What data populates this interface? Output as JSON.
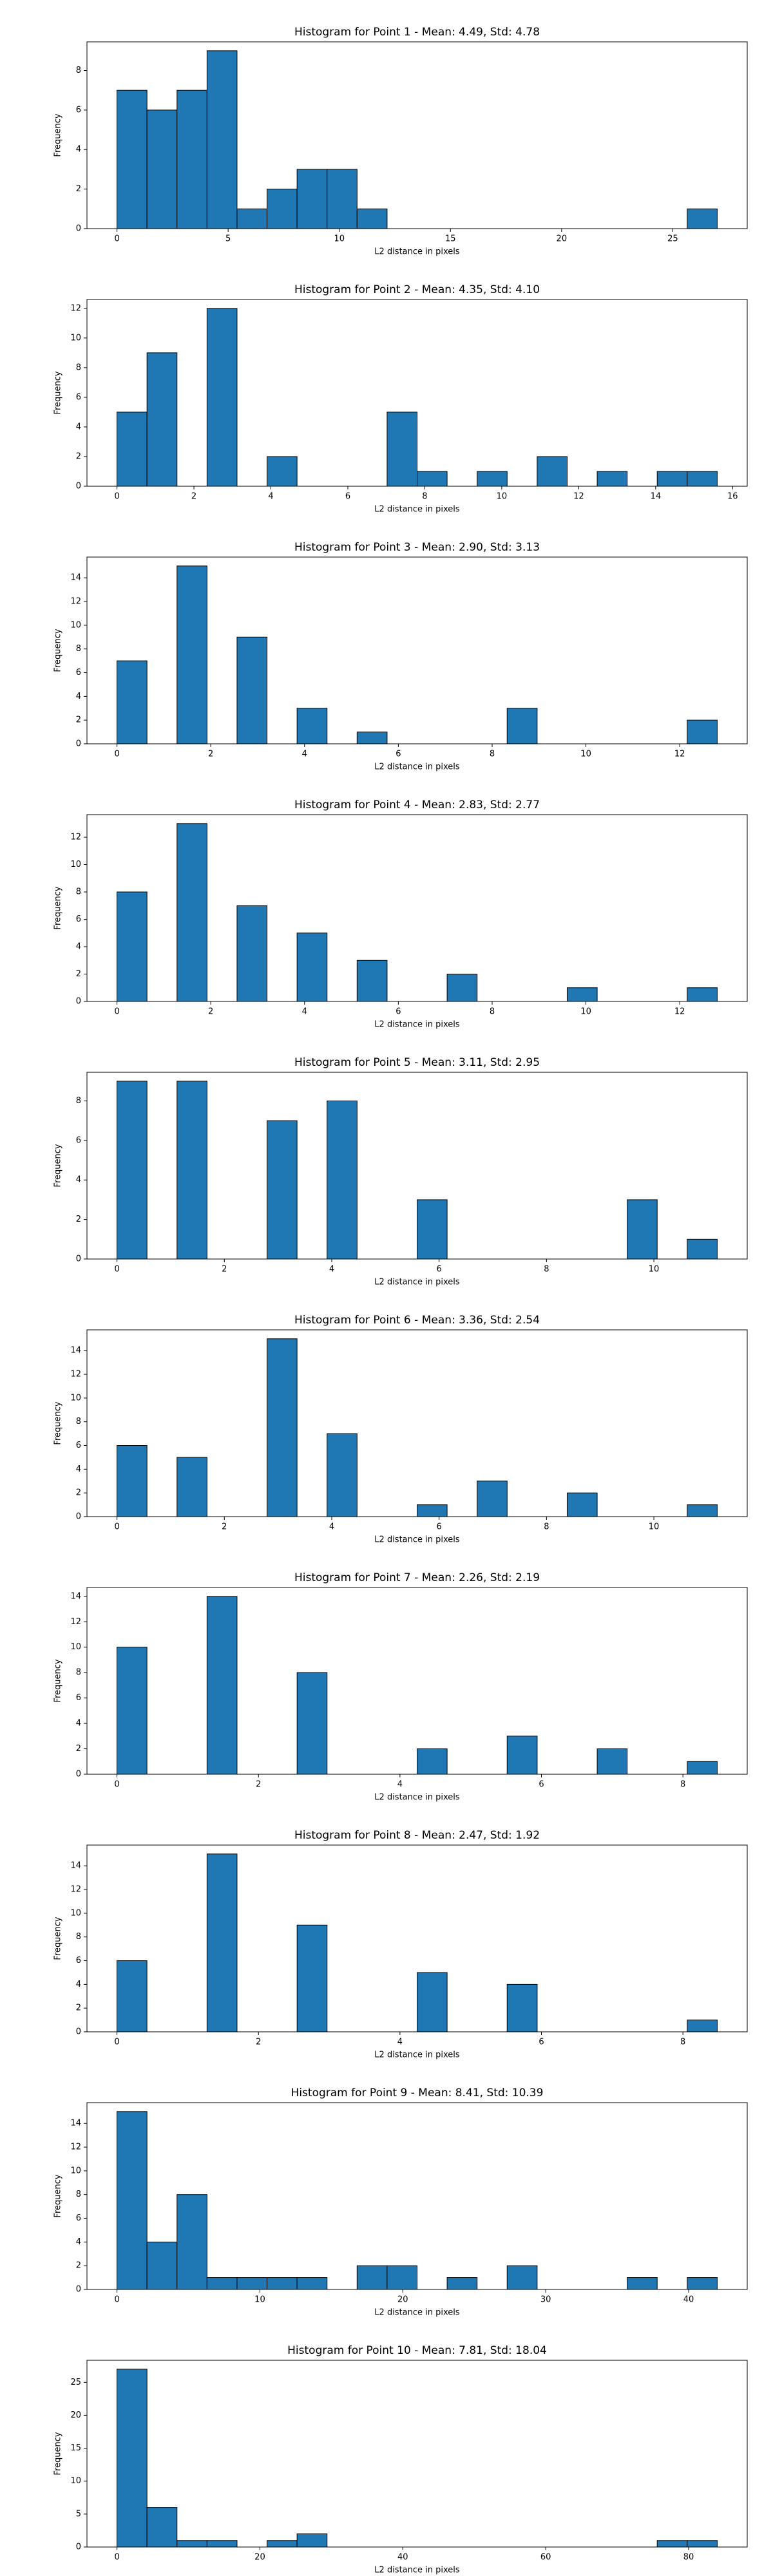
{
  "chart_data": [
    {
      "type": "histogram",
      "title": "Histogram for Point 1 - Mean: 4.49, Std: 4.78",
      "xlabel": "L2 distance in pixels",
      "ylabel": "Frequency",
      "color": "#1f77b4",
      "edgecolor": "#000000",
      "bins": [
        0,
        1.35,
        2.7,
        4.05,
        5.4,
        6.75,
        8.1,
        9.45,
        10.8,
        12.15,
        13.5,
        14.85,
        16.2,
        17.55,
        18.9,
        20.25,
        21.6,
        22.95,
        24.3,
        25.65,
        27
      ],
      "counts": [
        7,
        6,
        7,
        9,
        1,
        2,
        3,
        3,
        1,
        0,
        0,
        0,
        0,
        0,
        0,
        0,
        0,
        0,
        0,
        1
      ],
      "xlim": [
        -1.35,
        28.35
      ],
      "xticks": [
        0,
        5,
        10,
        15,
        20,
        25
      ],
      "ylim": [
        0,
        9.45
      ],
      "yticks": [
        0,
        2,
        4,
        6,
        8
      ]
    },
    {
      "type": "histogram",
      "title": "Histogram for Point 2 - Mean: 4.35, Std: 4.10",
      "xlabel": "L2 distance in pixels",
      "ylabel": "Frequency",
      "color": "#1f77b4",
      "edgecolor": "#000000",
      "bins": [
        0,
        0.78,
        1.56,
        2.34,
        3.12,
        3.9,
        4.68,
        5.46,
        6.24,
        7.02,
        7.8,
        8.58,
        9.36,
        10.14,
        10.92,
        11.7,
        12.48,
        13.26,
        14.04,
        14.82,
        15.6
      ],
      "counts": [
        5,
        9,
        0,
        12,
        0,
        2,
        0,
        0,
        0,
        5,
        1,
        0,
        1,
        0,
        2,
        0,
        1,
        0,
        1,
        1
      ],
      "xlim": [
        -0.78,
        16.38
      ],
      "xticks": [
        0,
        2,
        4,
        6,
        8,
        10,
        12,
        14,
        16
      ],
      "ylim": [
        0,
        12.6
      ],
      "yticks": [
        0,
        2,
        4,
        6,
        8,
        10,
        12
      ]
    },
    {
      "type": "histogram",
      "title": "Histogram for Point 3 - Mean: 2.90, Std: 3.13",
      "xlabel": "L2 distance in pixels",
      "ylabel": "Frequency",
      "color": "#1f77b4",
      "edgecolor": "#000000",
      "bins": [
        0,
        0.64,
        1.28,
        1.92,
        2.56,
        3.2,
        3.84,
        4.48,
        5.12,
        5.76,
        6.4,
        7.04,
        7.68,
        8.32,
        8.96,
        9.6,
        10.24,
        10.88,
        11.52,
        12.16,
        12.8
      ],
      "counts": [
        7,
        0,
        15,
        0,
        9,
        0,
        3,
        0,
        1,
        0,
        0,
        0,
        0,
        3,
        0,
        0,
        0,
        0,
        0,
        2
      ],
      "xlim": [
        -0.64,
        13.44
      ],
      "xticks": [
        0,
        2,
        4,
        6,
        8,
        10,
        12
      ],
      "ylim": [
        0,
        15.75
      ],
      "yticks": [
        0,
        2,
        4,
        6,
        8,
        10,
        12,
        14
      ]
    },
    {
      "type": "histogram",
      "title": "Histogram for Point 4 - Mean: 2.83, Std: 2.77",
      "xlabel": "L2 distance in pixels",
      "ylabel": "Frequency",
      "color": "#1f77b4",
      "edgecolor": "#000000",
      "bins": [
        0,
        0.64,
        1.28,
        1.92,
        2.56,
        3.2,
        3.84,
        4.48,
        5.12,
        5.76,
        6.4,
        7.04,
        7.68,
        8.32,
        8.96,
        9.6,
        10.24,
        10.88,
        11.52,
        12.16,
        12.8
      ],
      "counts": [
        8,
        0,
        13,
        0,
        7,
        0,
        5,
        0,
        3,
        0,
        0,
        2,
        0,
        0,
        0,
        1,
        0,
        0,
        0,
        1
      ],
      "xlim": [
        -0.64,
        13.44
      ],
      "xticks": [
        0,
        2,
        4,
        6,
        8,
        10,
        12
      ],
      "ylim": [
        0,
        13.65
      ],
      "yticks": [
        0,
        2,
        4,
        6,
        8,
        10,
        12
      ]
    },
    {
      "type": "histogram",
      "title": "Histogram for Point 5 - Mean: 3.11, Std: 2.95",
      "xlabel": "L2 distance in pixels",
      "ylabel": "Frequency",
      "color": "#1f77b4",
      "edgecolor": "#000000",
      "bins": [
        0,
        0.559,
        1.118,
        1.677,
        2.236,
        2.795,
        3.354,
        3.913,
        4.472,
        5.031,
        5.59,
        6.149,
        6.708,
        7.267,
        7.826,
        8.385,
        8.944,
        9.503,
        10.062,
        10.621,
        11.18
      ],
      "counts": [
        9,
        0,
        9,
        0,
        0,
        7,
        0,
        8,
        0,
        0,
        3,
        0,
        0,
        0,
        0,
        0,
        0,
        3,
        0,
        1
      ],
      "xlim": [
        -0.559,
        11.739
      ],
      "xticks": [
        0,
        2,
        4,
        6,
        8,
        10
      ],
      "ylim": [
        0,
        9.45
      ],
      "yticks": [
        0,
        2,
        4,
        6,
        8
      ]
    },
    {
      "type": "histogram",
      "title": "Histogram for Point 6 - Mean: 3.36, Std: 2.54",
      "xlabel": "L2 distance in pixels",
      "ylabel": "Frequency",
      "color": "#1f77b4",
      "edgecolor": "#000000",
      "bins": [
        0,
        0.559,
        1.118,
        1.677,
        2.236,
        2.795,
        3.354,
        3.913,
        4.472,
        5.031,
        5.59,
        6.149,
        6.708,
        7.267,
        7.826,
        8.385,
        8.944,
        9.503,
        10.062,
        10.621,
        11.18
      ],
      "counts": [
        6,
        0,
        5,
        0,
        0,
        15,
        0,
        7,
        0,
        0,
        1,
        0,
        3,
        0,
        0,
        2,
        0,
        0,
        0,
        1
      ],
      "xlim": [
        -0.559,
        11.739
      ],
      "xticks": [
        0,
        2,
        4,
        6,
        8,
        10
      ],
      "ylim": [
        0,
        15.75
      ],
      "yticks": [
        0,
        2,
        4,
        6,
        8,
        10,
        12,
        14
      ]
    },
    {
      "type": "histogram",
      "title": "Histogram for Point 7 - Mean: 2.26, Std: 2.19",
      "xlabel": "L2 distance in pixels",
      "ylabel": "Frequency",
      "color": "#1f77b4",
      "edgecolor": "#000000",
      "bins": [
        0,
        0.424,
        0.849,
        1.273,
        1.697,
        2.121,
        2.546,
        2.97,
        3.394,
        3.818,
        4.243,
        4.667,
        5.091,
        5.515,
        5.94,
        6.364,
        6.788,
        7.212,
        7.637,
        8.061,
        8.485
      ],
      "counts": [
        10,
        0,
        0,
        14,
        0,
        0,
        8,
        0,
        0,
        0,
        2,
        0,
        0,
        3,
        0,
        0,
        2,
        0,
        0,
        1
      ],
      "xlim": [
        -0.424,
        8.909
      ],
      "xticks": [
        0,
        2,
        4,
        6,
        8
      ],
      "ylim": [
        0,
        14.7
      ],
      "yticks": [
        0,
        2,
        4,
        6,
        8,
        10,
        12,
        14
      ]
    },
    {
      "type": "histogram",
      "title": "Histogram for Point 8 - Mean: 2.47, Std: 1.92",
      "xlabel": "L2 distance in pixels",
      "ylabel": "Frequency",
      "color": "#1f77b4",
      "edgecolor": "#000000",
      "bins": [
        0,
        0.424,
        0.849,
        1.273,
        1.697,
        2.121,
        2.546,
        2.97,
        3.394,
        3.818,
        4.243,
        4.667,
        5.091,
        5.515,
        5.94,
        6.364,
        6.788,
        7.212,
        7.637,
        8.061,
        8.485
      ],
      "counts": [
        6,
        0,
        0,
        15,
        0,
        0,
        9,
        0,
        0,
        0,
        5,
        0,
        0,
        4,
        0,
        0,
        0,
        0,
        0,
        1
      ],
      "xlim": [
        -0.424,
        8.909
      ],
      "xticks": [
        0,
        2,
        4,
        6,
        8
      ],
      "ylim": [
        0,
        15.75
      ],
      "yticks": [
        0,
        2,
        4,
        6,
        8,
        10,
        12,
        14
      ]
    },
    {
      "type": "histogram",
      "title": "Histogram for Point 9 - Mean: 8.41, Std: 10.39",
      "xlabel": "L2 distance in pixels",
      "ylabel": "Frequency",
      "color": "#1f77b4",
      "edgecolor": "#000000",
      "bins": [
        0,
        2.1,
        4.2,
        6.3,
        8.4,
        10.5,
        12.6,
        14.7,
        16.8,
        18.9,
        21,
        23.1,
        25.2,
        27.3,
        29.4,
        31.5,
        33.6,
        35.7,
        37.8,
        39.9,
        42
      ],
      "counts": [
        15,
        4,
        8,
        1,
        1,
        1,
        1,
        0,
        2,
        2,
        0,
        1,
        0,
        2,
        0,
        0,
        0,
        1,
        0,
        1
      ],
      "xlim": [
        -2.1,
        44.1
      ],
      "xticks": [
        0,
        10,
        20,
        30,
        40
      ],
      "ylim": [
        0,
        15.75
      ],
      "yticks": [
        0,
        2,
        4,
        6,
        8,
        10,
        12,
        14
      ]
    },
    {
      "type": "histogram",
      "title": "Histogram for Point 10 - Mean: 7.81, Std: 18.04",
      "xlabel": "L2 distance in pixels",
      "ylabel": "Frequency",
      "color": "#1f77b4",
      "edgecolor": "#000000",
      "bins": [
        0,
        4.2,
        8.4,
        12.6,
        16.8,
        21,
        25.2,
        29.4,
        33.6,
        37.8,
        42,
        46.2,
        50.4,
        54.6,
        58.8,
        63,
        67.2,
        71.4,
        75.6,
        79.8,
        84
      ],
      "counts": [
        27,
        6,
        1,
        1,
        0,
        1,
        2,
        0,
        0,
        0,
        0,
        0,
        0,
        0,
        0,
        0,
        0,
        0,
        1,
        1
      ],
      "xlim": [
        -4.2,
        88.2
      ],
      "xticks": [
        0,
        20,
        40,
        60,
        80
      ],
      "ylim": [
        0,
        28.35
      ],
      "yticks": [
        0,
        5,
        10,
        15,
        20,
        25
      ]
    }
  ]
}
